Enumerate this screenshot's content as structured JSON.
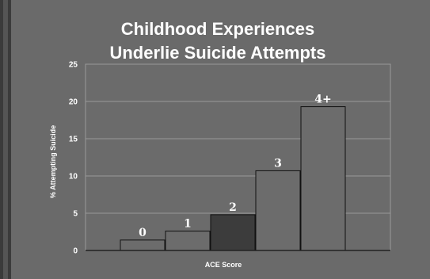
{
  "chart_data": {
    "type": "bar",
    "title_lines": [
      "Childhood Experiences",
      "Underlie Suicide Attempts"
    ],
    "xlabel": "ACE Score",
    "ylabel": "% Attempting Suicide",
    "categories": [
      "0",
      "1",
      "2",
      "3",
      "4+"
    ],
    "values": [
      1.4,
      2.6,
      4.8,
      10.7,
      19.3
    ],
    "ylim": [
      0,
      25
    ],
    "yticks": [
      0,
      5,
      10,
      15,
      20,
      25
    ],
    "grid": true,
    "legend": "none",
    "colors": {
      "plot_bg": "#6b6b6b",
      "bar": "#6c6c6c",
      "bar_highlight": "#3c3c3c",
      "highlight_index": 2,
      "gridline": "#9a9a9a",
      "bar_edge": "#111111"
    }
  }
}
